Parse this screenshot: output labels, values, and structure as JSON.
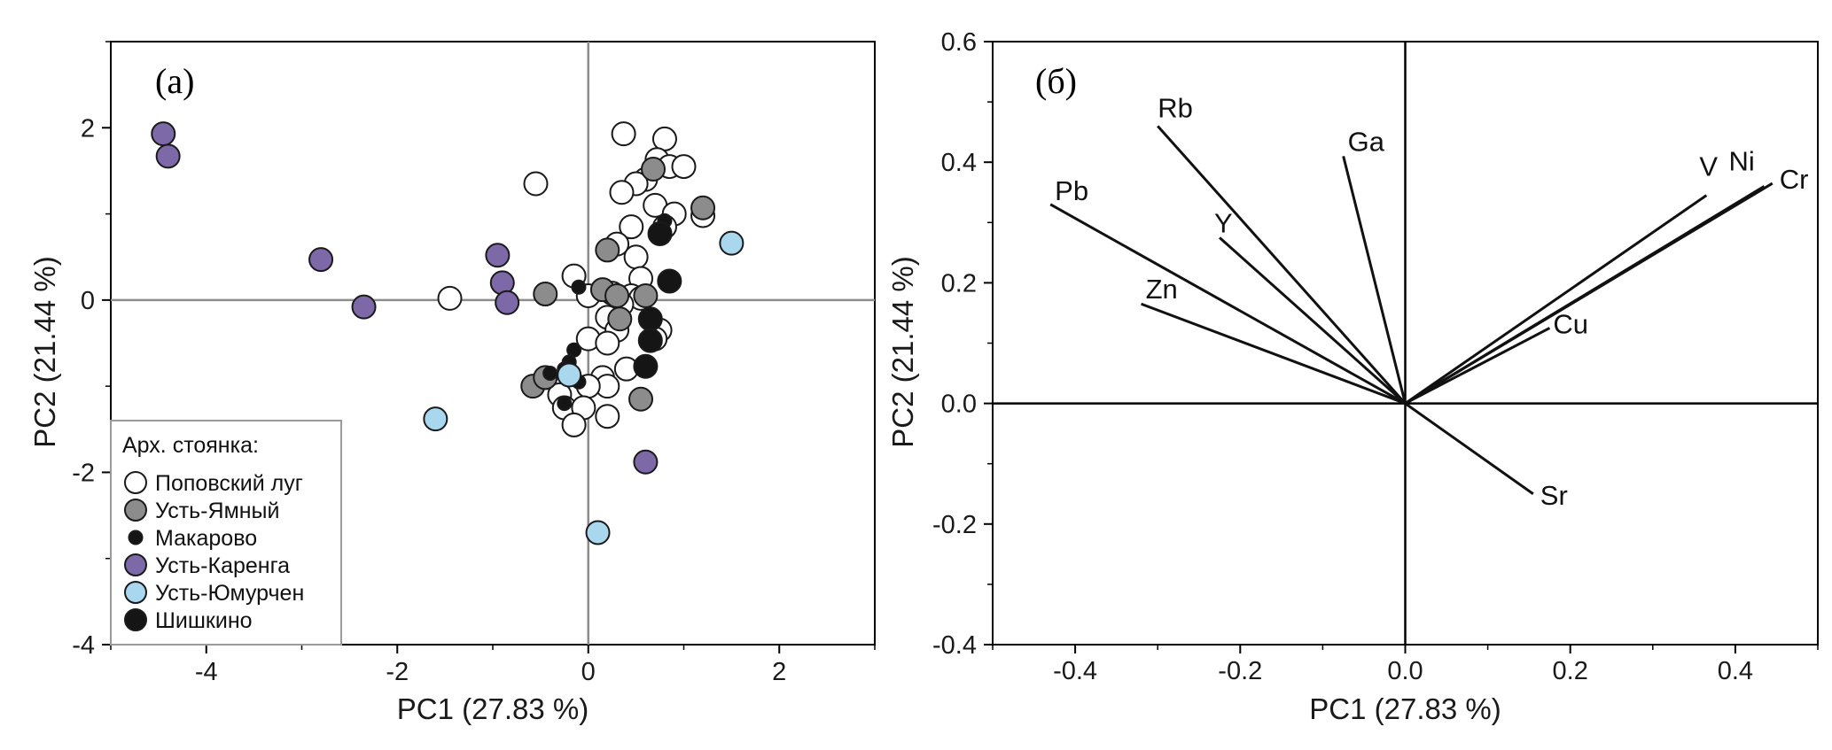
{
  "colors": {
    "Поповский луг": "#ffffff",
    "Усть-Ямный": "#8c8c8c",
    "Макарово": "#151515",
    "Усть-Каренга": "#7d68a8",
    "Усть-Юмурчен": "#a9d8ee",
    "Шишкино": "#151515"
  },
  "chart_data": [
    {
      "type": "scatter",
      "panel_label": "(а)",
      "xlabel": "PC1 (27.83 %)",
      "ylabel": "PC2 (21.44 %)",
      "xlim": [
        -5,
        3
      ],
      "ylim": [
        -4,
        3
      ],
      "xticks": [
        -4,
        -2,
        0,
        2
      ],
      "yticks": [
        2,
        0,
        -2,
        -4
      ],
      "xtick_labels": [
        "-4",
        "-2",
        "0",
        "2"
      ],
      "ytick_labels": [
        "2",
        "0",
        "-2",
        "-4"
      ],
      "legend_title": "Арх. стоянка:",
      "legend_position": "bottom-left",
      "series": [
        {
          "name": "Поповский луг",
          "marker": "large",
          "points": [
            [
              0.37,
              1.93
            ],
            [
              0.8,
              1.87
            ],
            [
              0.72,
              1.63
            ],
            [
              0.85,
              1.55
            ],
            [
              1.0,
              1.55
            ],
            [
              0.6,
              1.4
            ],
            [
              0.5,
              1.35
            ],
            [
              0.35,
              1.25
            ],
            [
              0.7,
              1.1
            ],
            [
              0.9,
              1.0
            ],
            [
              1.2,
              0.98
            ],
            [
              0.8,
              0.85
            ],
            [
              0.45,
              0.85
            ],
            [
              0.3,
              0.65
            ],
            [
              0.5,
              0.5
            ],
            [
              0.55,
              0.25
            ],
            [
              0.45,
              0.05
            ],
            [
              0.55,
              0.02
            ],
            [
              0.0,
              0.05
            ],
            [
              -0.15,
              0.28
            ],
            [
              0.25,
              0.08
            ],
            [
              0.35,
              -0.05
            ],
            [
              0.2,
              -0.2
            ],
            [
              0.3,
              -0.35
            ],
            [
              0.0,
              -0.45
            ],
            [
              0.2,
              -0.5
            ],
            [
              0.75,
              -0.35
            ],
            [
              0.7,
              -0.45
            ],
            [
              0.4,
              -0.8
            ],
            [
              0.15,
              -0.9
            ],
            [
              0.2,
              -1.0
            ],
            [
              0.0,
              -1.0
            ],
            [
              -0.3,
              -1.1
            ],
            [
              -0.25,
              -1.25
            ],
            [
              -0.05,
              -1.25
            ],
            [
              0.2,
              -1.35
            ],
            [
              -0.15,
              -1.45
            ],
            [
              -0.55,
              1.35
            ],
            [
              -1.45,
              0.02
            ]
          ]
        },
        {
          "name": "Усть-Ямный",
          "marker": "large",
          "points": [
            [
              0.68,
              1.52
            ],
            [
              1.2,
              1.07
            ],
            [
              0.2,
              0.58
            ],
            [
              0.15,
              0.12
            ],
            [
              0.3,
              0.05
            ],
            [
              0.33,
              -0.22
            ],
            [
              -0.45,
              0.07
            ],
            [
              0.6,
              0.05
            ],
            [
              -0.58,
              -1.0
            ],
            [
              -0.45,
              -0.9
            ],
            [
              0.55,
              -1.15
            ]
          ]
        },
        {
          "name": "Макарово",
          "marker": "small",
          "points": [
            [
              0.8,
              0.92
            ],
            [
              -0.1,
              0.15
            ],
            [
              -0.15,
              -0.58
            ],
            [
              -0.2,
              -0.72
            ],
            [
              -0.25,
              -0.8
            ],
            [
              -0.4,
              -0.85
            ],
            [
              -0.1,
              -0.95
            ],
            [
              -0.25,
              -1.2
            ]
          ]
        },
        {
          "name": "Усть-Каренга",
          "marker": "large",
          "points": [
            [
              -4.45,
              1.93
            ],
            [
              -4.4,
              1.67
            ],
            [
              -2.8,
              0.47
            ],
            [
              -2.35,
              -0.08
            ],
            [
              -0.95,
              0.52
            ],
            [
              -0.9,
              0.2
            ],
            [
              -0.85,
              -0.03
            ],
            [
              0.6,
              -1.88
            ]
          ]
        },
        {
          "name": "Усть-Юмурчен",
          "marker": "large",
          "points": [
            [
              1.5,
              0.66
            ],
            [
              -1.6,
              -1.38
            ],
            [
              0.1,
              -2.7
            ],
            [
              -0.2,
              -0.87
            ]
          ]
        },
        {
          "name": "Шишкино",
          "marker": "large",
          "points": [
            [
              0.75,
              0.77
            ],
            [
              0.85,
              0.22
            ],
            [
              0.65,
              -0.22
            ],
            [
              0.65,
              -0.47
            ],
            [
              0.6,
              -0.77
            ]
          ]
        }
      ]
    },
    {
      "type": "biplot",
      "panel_label": "(б)",
      "xlabel": "PC1 (27.83 %)",
      "ylabel": "PC2 (21.44 %)",
      "xlim": [
        -0.5,
        0.5
      ],
      "ylim": [
        -0.4,
        0.6
      ],
      "xticks": [
        -0.4,
        -0.2,
        0.0,
        0.2,
        0.4
      ],
      "yticks": [
        0.6,
        0.4,
        0.2,
        0.0,
        -0.2,
        -0.4
      ],
      "xtick_labels": [
        "-0.4",
        "-0.2",
        "0.0",
        "0.2",
        "0.4"
      ],
      "ytick_labels": [
        "0.6",
        "0.4",
        "0.2",
        "0.0",
        "-0.2",
        "-0.4"
      ],
      "vectors": [
        {
          "name": "Rb",
          "x": -0.3,
          "y": 0.46
        },
        {
          "name": "Ga",
          "x": -0.075,
          "y": 0.41
        },
        {
          "name": "Pb",
          "x": -0.43,
          "y": 0.33
        },
        {
          "name": "Y",
          "x": -0.225,
          "y": 0.275
        },
        {
          "name": "Zn",
          "x": -0.32,
          "y": 0.165
        },
        {
          "name": "V",
          "x": 0.365,
          "y": 0.345
        },
        {
          "name": "Ni",
          "x": 0.435,
          "y": 0.36
        },
        {
          "name": "Cr",
          "x": 0.445,
          "y": 0.365
        },
        {
          "name": "Cu",
          "x": 0.175,
          "y": 0.125
        },
        {
          "name": "Sr",
          "x": 0.155,
          "y": -0.15
        }
      ]
    }
  ]
}
